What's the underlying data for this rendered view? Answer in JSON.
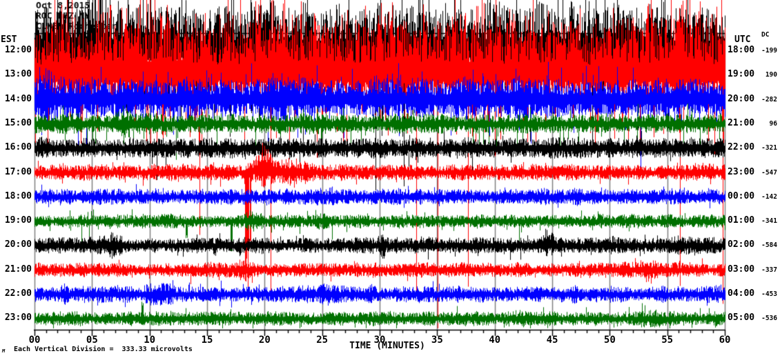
{
  "chart_data": {
    "type": "line",
    "subtype": "helicorder-seismogram",
    "title_lines": [
      "Oct 8,2015",
      "ROC HHZ NY",
      "CLNE, Rochester"
    ],
    "xlabel": "TIME (MINUTES)",
    "x_range_minutes": [
      0,
      60
    ],
    "x_tick_labels": [
      "00",
      "05",
      "10",
      "15",
      "20",
      "25",
      "30",
      "35",
      "40",
      "45",
      "50",
      "55",
      "60"
    ],
    "x_minor_tick_minutes": 1,
    "left_timezone_label": "EST",
    "right_timezone_label": "UTC",
    "dc_column_label": "DC",
    "footer_note": "Each Vertical Division =  333.33 microvolts",
    "footer_mark": "M",
    "background": "#ffffff",
    "grid_color": "#808080",
    "axis_color": "#000000",
    "trace_palette": [
      "#000000",
      "#ff0000",
      "#0000ff",
      "#007000"
    ],
    "rows": [
      {
        "est": "12:00",
        "utc": "18:00",
        "dc": "-199",
        "color": "#000000",
        "seed": 11,
        "amp_up": 44,
        "amp_down": 26,
        "tail_up_p": 0.1,
        "tail_up_len": 28,
        "tail_down_p": 0.06,
        "tail_down_len": 70,
        "rare_down_p": 0.01,
        "rare_down_len": 170,
        "events": [
          {
            "kind": "burst",
            "min": 1.0,
            "mag": 1.3,
            "dur": 1.0
          },
          {
            "kind": "burst",
            "min": 5.5,
            "mag": 1.6,
            "dur": 2.2
          }
        ]
      },
      {
        "est": "13:00",
        "utc": "19:00",
        "dc": "190",
        "color": "#ff0000",
        "seed": 22,
        "amp_up": 52,
        "amp_down": 24,
        "tail_up_p": 0.2,
        "tail_up_len": 48,
        "tail_down_p": 0.1,
        "tail_down_len": 80,
        "rare_down_p": 0.009,
        "rare_down_len": 340,
        "events": [
          {
            "kind": "burst",
            "min": 57.0,
            "mag": 1.2,
            "dur": 2.0
          }
        ]
      },
      {
        "est": "14:00",
        "utc": "20:00",
        "dc": "-282",
        "color": "#0000ff",
        "seed": 33,
        "amp_up": 20,
        "amp_down": 17,
        "tail_up_p": 0.05,
        "tail_up_len": 26,
        "tail_down_p": 0.05,
        "tail_down_len": 30,
        "rare_down_p": 0.004,
        "rare_down_len": 60,
        "events": [
          {
            "kind": "burst",
            "min": 1.0,
            "mag": 1.5,
            "dur": 1.5
          },
          {
            "kind": "burst",
            "min": 21.5,
            "mag": 1.35,
            "dur": 2.0
          },
          {
            "kind": "burst",
            "min": 42.5,
            "mag": 1.35,
            "dur": 2.0
          }
        ]
      },
      {
        "est": "15:00",
        "utc": "21:00",
        "dc": "96",
        "color": "#007000",
        "seed": 44,
        "amp_up": 10,
        "amp_down": 9,
        "tail_up_p": 0.02,
        "tail_up_len": 18,
        "tail_down_p": 0.04,
        "tail_down_len": 26,
        "rare_down_p": 0.004,
        "rare_down_len": 45,
        "events": [
          {
            "kind": "burst",
            "min": 8.0,
            "mag": 1.5,
            "dur": 1.0
          }
        ]
      },
      {
        "est": "16:00",
        "utc": "22:00",
        "dc": "-321",
        "color": "#000000",
        "seed": 55,
        "amp_up": 10,
        "amp_down": 9,
        "tail_up_p": 0.015,
        "tail_up_len": 13,
        "tail_down_p": 0.015,
        "tail_down_len": 13,
        "rare_down_p": 0.002,
        "rare_down_len": 28,
        "events": []
      },
      {
        "est": "17:00",
        "utc": "23:00",
        "dc": "-547",
        "color": "#ff0000",
        "seed": 66,
        "amp_up": 8,
        "amp_down": 7,
        "tail_up_p": 0.02,
        "tail_up_len": 10,
        "tail_down_p": 0.02,
        "tail_down_len": 12,
        "rare_down_p": 0,
        "rare_down_len": 0,
        "events": [
          {
            "kind": "spike",
            "min": 18.45,
            "dir": "down",
            "len": 178,
            "w": 0.16
          },
          {
            "kind": "spike",
            "min": 18.75,
            "dir": "down",
            "len": 120,
            "w": 0.07
          },
          {
            "kind": "burst",
            "min": 19.9,
            "mag": 2.6,
            "dur": 1.5,
            "lift": 6
          },
          {
            "kind": "burst",
            "min": 22.3,
            "mag": 1.7,
            "dur": 2.8
          },
          {
            "kind": "burst",
            "min": 26.0,
            "mag": 1.25,
            "dur": 3.0
          }
        ]
      },
      {
        "est": "18:00",
        "utc": "00:00",
        "dc": "-142",
        "color": "#0000ff",
        "seed": 77,
        "amp_up": 8,
        "amp_down": 7,
        "tail_up_p": 0.015,
        "tail_up_len": 10,
        "tail_down_p": 0.015,
        "tail_down_len": 10,
        "rare_down_p": 0,
        "rare_down_len": 0,
        "events": [
          {
            "kind": "burst",
            "min": 25.5,
            "mag": 1.3,
            "dur": 2.0
          },
          {
            "kind": "burst",
            "min": 45.0,
            "mag": 1.3,
            "dur": 1.5
          }
        ]
      },
      {
        "est": "19:00",
        "utc": "01:00",
        "dc": "-341",
        "color": "#007000",
        "seed": 88,
        "amp_up": 6.5,
        "amp_down": 6,
        "tail_up_p": 0.02,
        "tail_up_len": 10,
        "tail_down_p": 0.02,
        "tail_down_len": 10,
        "rare_down_p": 0.004,
        "rare_down_len": 32,
        "events": [
          {
            "kind": "spike",
            "min": 13.2,
            "dir": "down",
            "len": 26,
            "w": 0.07
          },
          {
            "kind": "spike",
            "min": 17.1,
            "dir": "down",
            "len": 50,
            "w": 0.09
          },
          {
            "kind": "burst",
            "min": 18.9,
            "mag": 1.8,
            "dur": 1.2
          },
          {
            "kind": "burst",
            "min": 24.8,
            "mag": 1.4,
            "dur": 1.5
          }
        ]
      },
      {
        "est": "20:00",
        "utc": "02:00",
        "dc": "-584",
        "color": "#000000",
        "seed": 99,
        "amp_up": 8,
        "amp_down": 7,
        "tail_up_p": 0.015,
        "tail_up_len": 10,
        "tail_down_p": 0.015,
        "tail_down_len": 10,
        "rare_down_p": 0,
        "rare_down_len": 0,
        "events": [
          {
            "kind": "burst",
            "min": 6.5,
            "mag": 1.5,
            "dur": 2.0
          },
          {
            "kind": "spike",
            "min": 30.35,
            "dir": "down",
            "len": 20,
            "w": 0.12
          },
          {
            "kind": "burst",
            "min": 30.2,
            "mag": 1.5,
            "dur": 0.6
          },
          {
            "kind": "burst",
            "min": 44.6,
            "mag": 1.9,
            "dur": 0.8,
            "lift": 5
          },
          {
            "kind": "burst",
            "min": 55.9,
            "mag": 1.4,
            "dur": 1.2
          }
        ]
      },
      {
        "est": "21:00",
        "utc": "03:00",
        "dc": "-337",
        "color": "#ff0000",
        "seed": 110,
        "amp_up": 7,
        "amp_down": 6.5,
        "tail_up_p": 0.015,
        "tail_up_len": 10,
        "tail_down_p": 0.015,
        "tail_down_len": 10,
        "rare_down_p": 0,
        "rare_down_len": 0,
        "events": [
          {
            "kind": "burst",
            "min": 17.8,
            "mag": 1.5,
            "dur": 1.6
          },
          {
            "kind": "burst",
            "min": 53.0,
            "mag": 1.25,
            "dur": 4.0
          }
        ]
      },
      {
        "est": "22:00",
        "utc": "04:00",
        "dc": "-453",
        "color": "#0000ff",
        "seed": 121,
        "amp_up": 8,
        "amp_down": 7.5,
        "tail_up_p": 0.015,
        "tail_up_len": 10,
        "tail_down_p": 0.015,
        "tail_down_len": 10,
        "rare_down_p": 0,
        "rare_down_len": 0,
        "events": [
          {
            "kind": "burst",
            "min": 2.6,
            "mag": 1.7,
            "dur": 0.5
          },
          {
            "kind": "burst",
            "min": 11.0,
            "mag": 1.3,
            "dur": 2.5
          },
          {
            "kind": "burst",
            "min": 25.3,
            "mag": 1.5,
            "dur": 0.8
          }
        ]
      },
      {
        "est": "23:00",
        "utc": "05:00",
        "dc": "-536",
        "color": "#007000",
        "seed": 132,
        "amp_up": 7,
        "amp_down": 6.5,
        "tail_up_p": 0.015,
        "tail_up_len": 9,
        "tail_down_p": 0.015,
        "tail_down_len": 9,
        "rare_down_p": 0,
        "rare_down_len": 0,
        "events": [
          {
            "kind": "spike",
            "min": 9.35,
            "dir": "up",
            "len": 26,
            "w": 0.09
          },
          {
            "kind": "burst",
            "min": 42.0,
            "mag": 1.5,
            "dur": 1.2
          },
          {
            "kind": "burst",
            "min": 53.5,
            "mag": 1.3,
            "dur": 2.5
          }
        ]
      }
    ]
  }
}
